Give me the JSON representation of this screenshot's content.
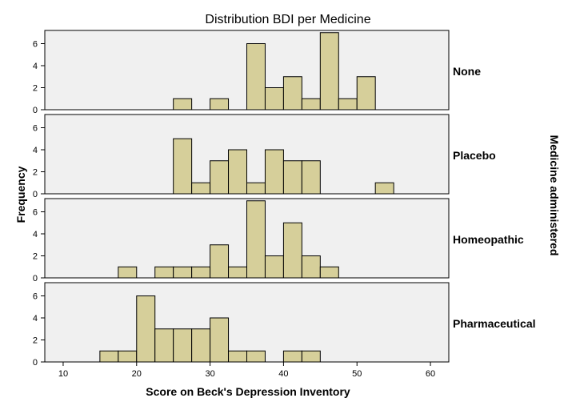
{
  "chart_data": {
    "type": "bar",
    "title": "Distribution BDI per Medicine",
    "xlabel": "Score on Beck's Depression Inventory",
    "ylabel": "Frequency",
    "panel_axis_label": "Medicine administered",
    "xlim": [
      7.5,
      62.5
    ],
    "ylim": [
      0,
      7.2
    ],
    "x_ticks": [
      10,
      20,
      30,
      40,
      50,
      60
    ],
    "y_ticks": [
      0,
      2,
      4,
      6
    ],
    "bin_width": 2.5,
    "grid": false,
    "colors": {
      "bar_fill": "#d6cf9a",
      "bar_stroke": "#000000",
      "panel_bg": "#f0f0f0"
    },
    "series": [
      {
        "name": "None",
        "bars": [
          {
            "x": 26.25,
            "value": 1
          },
          {
            "x": 31.25,
            "value": 1
          },
          {
            "x": 36.25,
            "value": 6
          },
          {
            "x": 38.75,
            "value": 2
          },
          {
            "x": 41.25,
            "value": 3
          },
          {
            "x": 43.75,
            "value": 1
          },
          {
            "x": 46.25,
            "value": 7
          },
          {
            "x": 48.75,
            "value": 1
          },
          {
            "x": 51.25,
            "value": 3
          }
        ]
      },
      {
        "name": "Placebo",
        "bars": [
          {
            "x": 26.25,
            "value": 5
          },
          {
            "x": 28.75,
            "value": 1
          },
          {
            "x": 31.25,
            "value": 3
          },
          {
            "x": 33.75,
            "value": 4
          },
          {
            "x": 36.25,
            "value": 1
          },
          {
            "x": 38.75,
            "value": 4
          },
          {
            "x": 41.25,
            "value": 3
          },
          {
            "x": 43.75,
            "value": 3
          },
          {
            "x": 53.75,
            "value": 1
          }
        ]
      },
      {
        "name": "Homeopathic",
        "bars": [
          {
            "x": 18.75,
            "value": 1
          },
          {
            "x": 23.75,
            "value": 1
          },
          {
            "x": 26.25,
            "value": 1
          },
          {
            "x": 28.75,
            "value": 1
          },
          {
            "x": 31.25,
            "value": 3
          },
          {
            "x": 33.75,
            "value": 1
          },
          {
            "x": 36.25,
            "value": 7
          },
          {
            "x": 38.75,
            "value": 2
          },
          {
            "x": 41.25,
            "value": 5
          },
          {
            "x": 43.75,
            "value": 2
          },
          {
            "x": 46.25,
            "value": 1
          }
        ]
      },
      {
        "name": "Pharmaceutical",
        "bars": [
          {
            "x": 16.25,
            "value": 1
          },
          {
            "x": 18.75,
            "value": 1
          },
          {
            "x": 21.25,
            "value": 6
          },
          {
            "x": 23.75,
            "value": 3
          },
          {
            "x": 26.25,
            "value": 3
          },
          {
            "x": 28.75,
            "value": 3
          },
          {
            "x": 31.25,
            "value": 4
          },
          {
            "x": 33.75,
            "value": 1
          },
          {
            "x": 36.25,
            "value": 1
          },
          {
            "x": 41.25,
            "value": 1
          },
          {
            "x": 43.75,
            "value": 1
          }
        ]
      }
    ]
  }
}
